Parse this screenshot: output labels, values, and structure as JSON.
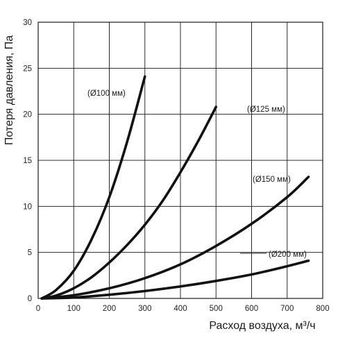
{
  "chart_data": {
    "type": "line",
    "title": "",
    "xlabel": "Расход воздуха, м³/ч",
    "ylabel": "Потеря давления, Па",
    "xlim": [
      0,
      800
    ],
    "ylim": [
      0,
      30
    ],
    "x_ticks": [
      "0",
      "100",
      "200",
      "300",
      "400",
      "500",
      "600",
      "700",
      "800"
    ],
    "y_ticks": [
      "0",
      "5",
      "10",
      "15",
      "20",
      "25",
      "30"
    ],
    "grid": true,
    "legend": "none",
    "line_color": "#111111",
    "series": [
      {
        "name": "(Ø100 мм)",
        "x": [
          10,
          50,
          100,
          150,
          200,
          250,
          300
        ],
        "y": [
          0,
          0.9,
          3.0,
          6.4,
          11.0,
          17.0,
          24.1
        ]
      },
      {
        "name": "(Ø125 мм)",
        "x": [
          10,
          50,
          100,
          150,
          200,
          250,
          300,
          350,
          400,
          450,
          500
        ],
        "y": [
          0,
          0.3,
          1.1,
          2.3,
          3.9,
          5.8,
          8.0,
          10.6,
          13.7,
          17.1,
          20.8
        ]
      },
      {
        "name": "(Ø150 мм)",
        "x": [
          10,
          100,
          200,
          300,
          400,
          500,
          600,
          700,
          760
        ],
        "y": [
          0,
          0.35,
          1.1,
          2.2,
          3.7,
          5.7,
          8.1,
          11.0,
          13.2
        ]
      },
      {
        "name": "(Ø200 мм)",
        "x": [
          10,
          100,
          200,
          300,
          400,
          500,
          600,
          700,
          760
        ],
        "y": [
          0,
          0.1,
          0.4,
          0.8,
          1.3,
          1.9,
          2.6,
          3.5,
          4.1
        ]
      }
    ]
  }
}
